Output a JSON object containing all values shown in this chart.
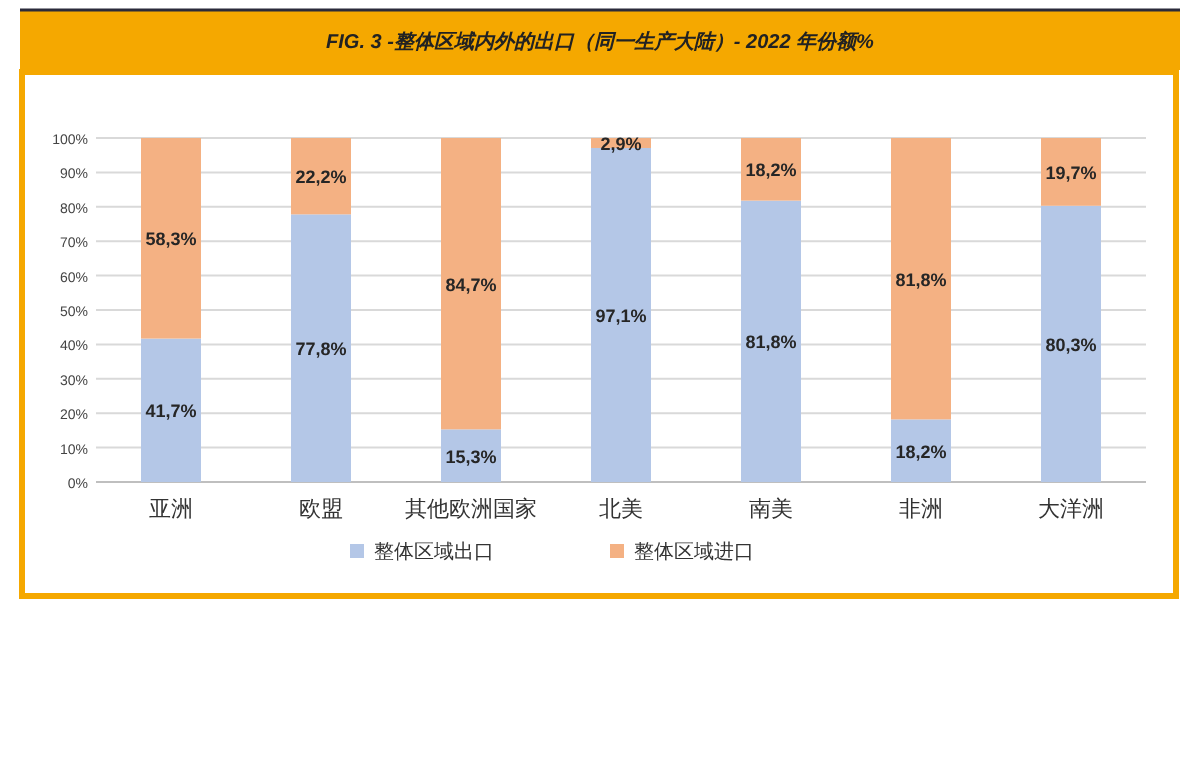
{
  "chart_data": {
    "type": "bar",
    "stacked": true,
    "title": "FIG. 3 -整体区域内外的出口（同一生产大陆）- 2022 年份额%",
    "categories": [
      "亚洲",
      "欧盟",
      "其他欧洲国家",
      "北美",
      "南美",
      "非洲",
      "大洋洲"
    ],
    "series": [
      {
        "name": "整体区域出口",
        "color": "#b4c7e7",
        "values": [
          41.7,
          77.8,
          15.3,
          97.1,
          81.8,
          18.2,
          80.3
        ],
        "value_labels": [
          "41,7%",
          "77,8%",
          "15,3%",
          "97,1%",
          "81,8%",
          "18,2%",
          "80,3%"
        ]
      },
      {
        "name": "整体区域进口",
        "color": "#f4b183",
        "values": [
          58.3,
          22.2,
          84.7,
          2.9,
          18.2,
          81.8,
          19.7
        ],
        "value_labels": [
          "58,3%",
          "22,2%",
          "84,7%",
          "2,9%",
          "18,2%",
          "81,8%",
          "19,7%"
        ]
      }
    ],
    "ylim": [
      0,
      100
    ],
    "yticks": [
      {
        "value": 0,
        "label": "0%"
      },
      {
        "value": 10,
        "label": "10%"
      },
      {
        "value": 20,
        "label": "20%"
      },
      {
        "value": 30,
        "label": "30%"
      },
      {
        "value": 40,
        "label": "40%"
      },
      {
        "value": 50,
        "label": "50%"
      },
      {
        "value": 60,
        "label": "60%"
      },
      {
        "value": 70,
        "label": "70%"
      },
      {
        "value": 80,
        "label": "80%"
      },
      {
        "value": 90,
        "label": "90%"
      },
      {
        "value": 100,
        "label": "100%"
      }
    ],
    "grid": "y",
    "legend": "bottom"
  }
}
